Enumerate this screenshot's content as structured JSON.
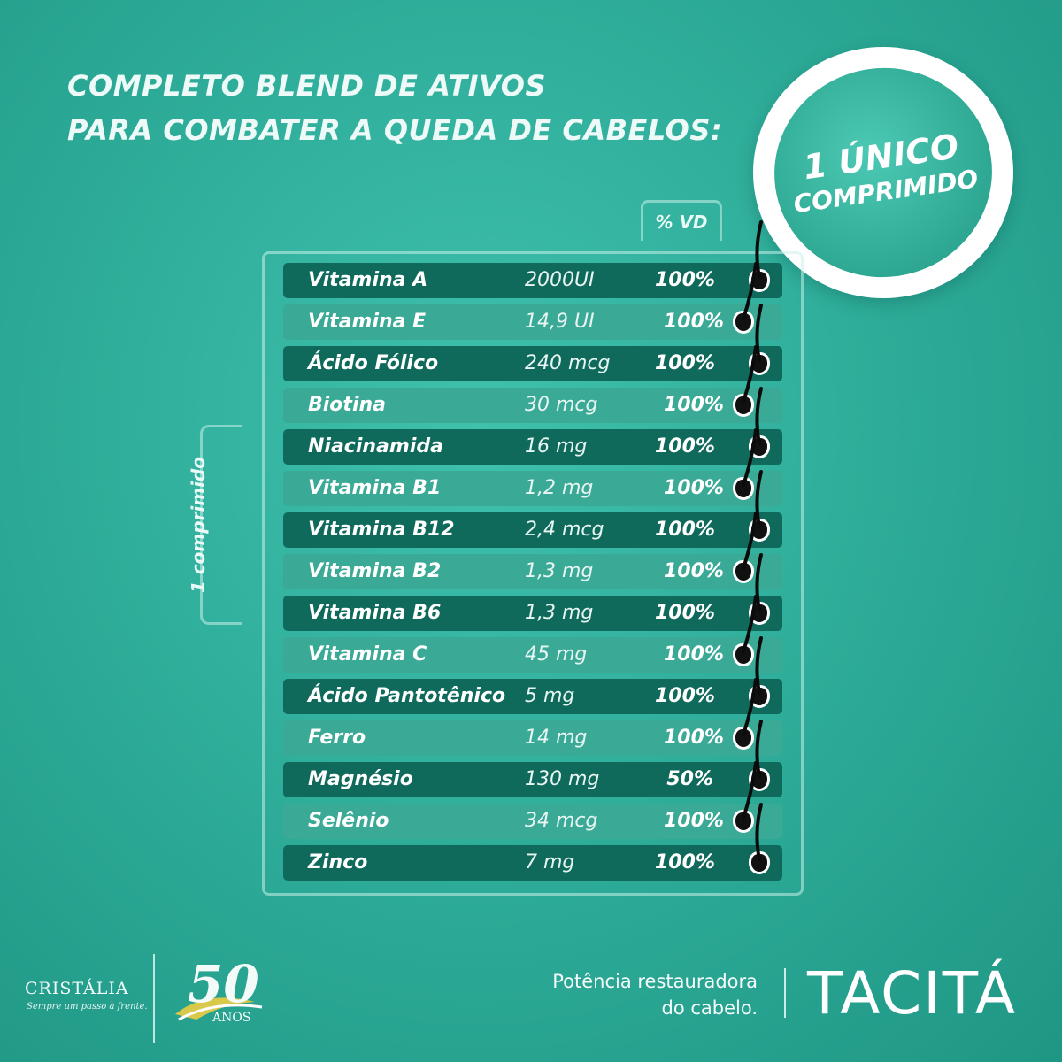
{
  "headline": {
    "line1": "COMPLETO BLEND DE ATIVOS",
    "line2": "PARA COMBATER A QUEDA DE CABELOS:"
  },
  "badge": {
    "line1": "1 ÚNICO",
    "line2": "COMPRIMIDO"
  },
  "table": {
    "vd_header": "% VD",
    "side_label": "1 comprimido",
    "rows": [
      {
        "name": "Vitamina A",
        "amount": "2000UI",
        "pct": "100%"
      },
      {
        "name": "Vitamina E",
        "amount": "14,9 UI",
        "pct": "100%"
      },
      {
        "name": "Ácido Fólico",
        "amount": "240 mcg",
        "pct": "100%"
      },
      {
        "name": "Biotina",
        "amount": "30 mcg",
        "pct": "100%"
      },
      {
        "name": "Niacinamida",
        "amount": "16 mg",
        "pct": "100%"
      },
      {
        "name": "Vitamina B1",
        "amount": "1,2 mg",
        "pct": "100%"
      },
      {
        "name": "Vitamina B12",
        "amount": "2,4 mcg",
        "pct": "100%"
      },
      {
        "name": "Vitamina B2",
        "amount": "1,3 mg",
        "pct": "100%"
      },
      {
        "name": "Vitamina B6",
        "amount": "1,3 mg",
        "pct": "100%"
      },
      {
        "name": "Vitamina C",
        "amount": "45 mg",
        "pct": "100%"
      },
      {
        "name": "Ácido Pantotênico",
        "amount": "5 mg",
        "pct": "100%"
      },
      {
        "name": "Ferro",
        "amount": "14 mg",
        "pct": "100%"
      },
      {
        "name": "Magnésio",
        "amount": "130 mg",
        "pct": "50%"
      },
      {
        "name": "Selênio",
        "amount": "34 mcg",
        "pct": "100%"
      },
      {
        "name": "Zinco",
        "amount": "7 mg",
        "pct": "100%"
      }
    ]
  },
  "footer": {
    "cristalia_name": "CRISTÁLIA",
    "cristalia_tagline": "Sempre um passo à frente.",
    "anniversary_number": "50",
    "anniversary_word": "ANOS",
    "slogan_line1": "Potência restauradora",
    "slogan_line2": "do cabelo.",
    "brand": "TACITÁ"
  },
  "colors": {
    "background": "#2fae9b",
    "row_dark": "#0f6a5c",
    "row_light": "#3aa996",
    "text": "#ffffff"
  }
}
